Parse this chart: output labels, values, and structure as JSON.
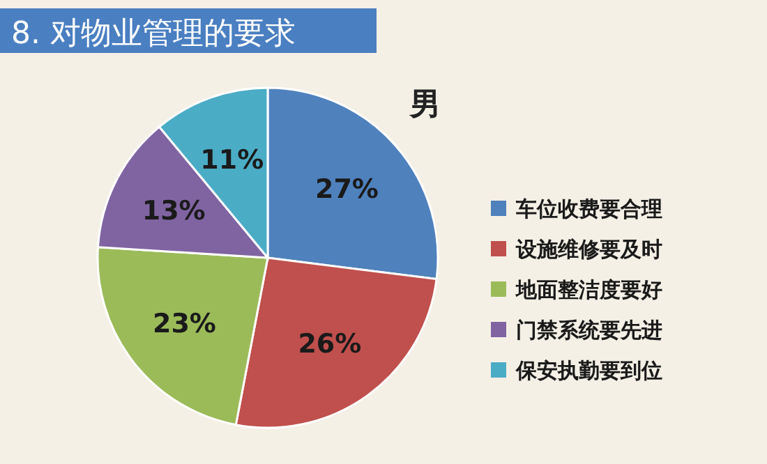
{
  "chart_data": {
    "type": "pie",
    "title": "8. 对物业管理的要求",
    "subtitle": "男",
    "categories": [
      "车位收费要合理",
      "设施维修要及时",
      "地面整洁度要好",
      "门禁系统要先进",
      "保安执勤要到位"
    ],
    "values": [
      27,
      26,
      23,
      13,
      11
    ],
    "colors": [
      "#4f81bd",
      "#c0504d",
      "#9bbb59",
      "#8064a2",
      "#4bacc6"
    ],
    "value_labels": [
      "27%",
      "26%",
      "23%",
      "13%",
      "11%"
    ],
    "legend": "right"
  }
}
